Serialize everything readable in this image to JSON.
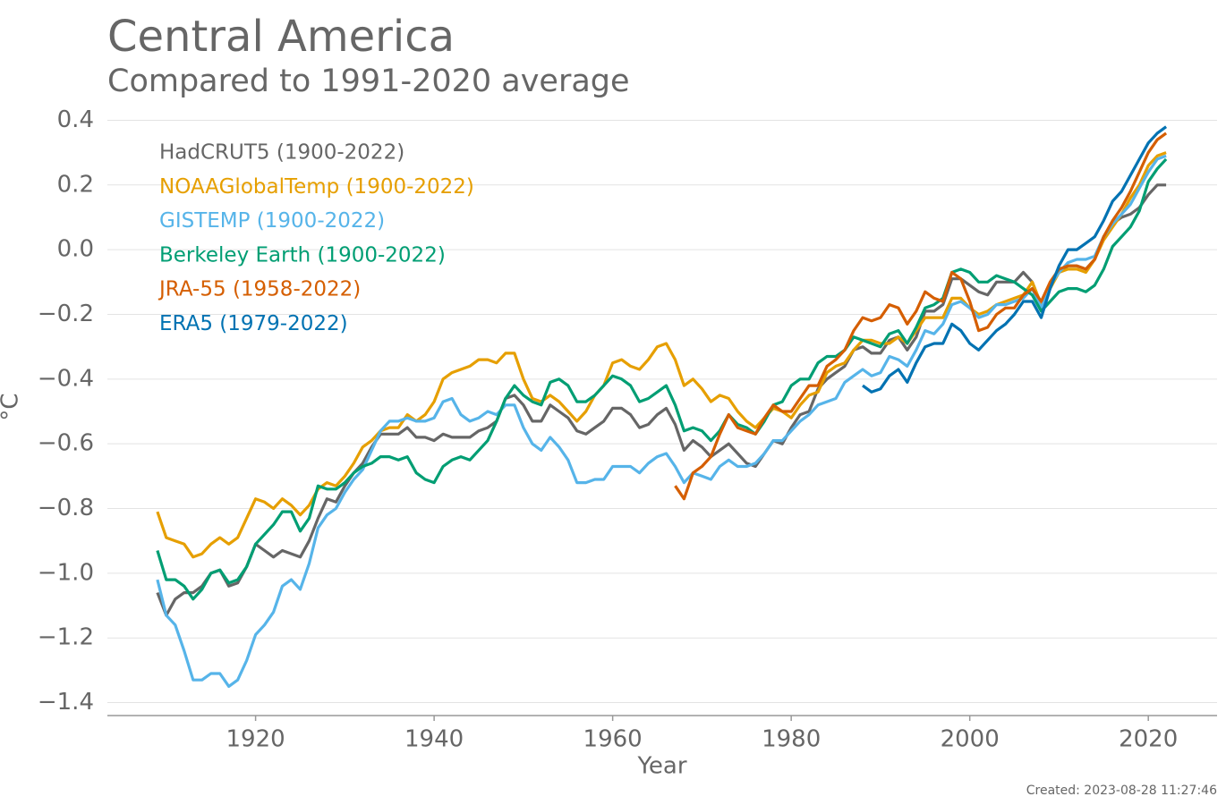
{
  "chart_data": {
    "type": "line",
    "title": "Central America",
    "subtitle": "Compared to 1991-2020 average",
    "x_label": "Year",
    "y_label": "°C",
    "annotation": "Created: 2023-08-28 11:27:46",
    "grid": true,
    "legend": "upper left",
    "xlim": [
      1903.4,
      2027.7
    ],
    "xticks": [
      1920,
      1940,
      1960,
      1980,
      2000,
      2020
    ],
    "ylim": [
      -1.44,
      0.44
    ],
    "yticks": [
      {
        "value": -1.4,
        "label": "−1.4"
      },
      {
        "value": -1.2,
        "label": "−1.2"
      },
      {
        "value": -1.0,
        "label": "−1.0"
      },
      {
        "value": -0.8,
        "label": "−0.8"
      },
      {
        "value": -0.6,
        "label": "−0.6"
      },
      {
        "value": -0.4,
        "label": "−0.4"
      },
      {
        "value": -0.2,
        "label": "−0.2"
      },
      {
        "value": 0,
        "label": "0.0"
      },
      0.2,
      0.4
    ],
    "x": [
      1909,
      1910,
      1911,
      1912,
      1913,
      1914,
      1915,
      1916,
      1917,
      1918,
      1919,
      1920,
      1921,
      1922,
      1923,
      1924,
      1925,
      1926,
      1927,
      1928,
      1929,
      1930,
      1931,
      1932,
      1933,
      1934,
      1935,
      1936,
      1937,
      1938,
      1939,
      1940,
      1941,
      1942,
      1943,
      1944,
      1945,
      1946,
      1947,
      1948,
      1949,
      1950,
      1951,
      1952,
      1953,
      1954,
      1955,
      1956,
      1957,
      1958,
      1959,
      1960,
      1961,
      1962,
      1963,
      1964,
      1965,
      1966,
      1967,
      1968,
      1969,
      1970,
      1971,
      1972,
      1973,
      1974,
      1975,
      1976,
      1977,
      1978,
      1979,
      1980,
      1981,
      1982,
      1983,
      1984,
      1985,
      1986,
      1987,
      1988,
      1989,
      1990,
      1991,
      1992,
      1993,
      1994,
      1995,
      1996,
      1997,
      1998,
      1999,
      2000,
      2001,
      2002,
      2003,
      2004,
      2005,
      2006,
      2007,
      2008,
      2009,
      2010,
      2011,
      2012,
      2013,
      2014,
      2015,
      2016,
      2017,
      2018,
      2019,
      2020,
      2021,
      2022
    ],
    "series": [
      {
        "name": "HadCRUT5 (1900-2022)",
        "color": "#666666",
        "values": [
          -1.06,
          -1.13,
          -1.08,
          -1.06,
          -1.06,
          -1.04,
          -1.0,
          -0.99,
          -1.04,
          -1.03,
          -0.98,
          -0.91,
          -0.93,
          -0.95,
          -0.93,
          -0.94,
          -0.95,
          -0.9,
          -0.83,
          -0.77,
          -0.78,
          -0.73,
          -0.69,
          -0.66,
          -0.61,
          -0.57,
          -0.57,
          -0.57,
          -0.55,
          -0.58,
          -0.58,
          -0.59,
          -0.57,
          -0.58,
          -0.58,
          -0.58,
          -0.56,
          -0.55,
          -0.53,
          -0.46,
          -0.45,
          -0.48,
          -0.53,
          -0.53,
          -0.48,
          -0.5,
          -0.52,
          -0.56,
          -0.57,
          -0.55,
          -0.53,
          -0.49,
          -0.49,
          -0.51,
          -0.55,
          -0.54,
          -0.51,
          -0.49,
          -0.54,
          -0.62,
          -0.59,
          -0.61,
          -0.64,
          -0.62,
          -0.6,
          -0.63,
          -0.66,
          -0.67,
          -0.63,
          -0.59,
          -0.6,
          -0.55,
          -0.51,
          -0.5,
          -0.43,
          -0.4,
          -0.38,
          -0.36,
          -0.31,
          -0.3,
          -0.32,
          -0.32,
          -0.28,
          -0.27,
          -0.31,
          -0.27,
          -0.19,
          -0.19,
          -0.17,
          -0.09,
          -0.09,
          -0.11,
          -0.13,
          -0.14,
          -0.1,
          -0.1,
          -0.1,
          -0.07,
          -0.1,
          -0.17,
          -0.11,
          -0.07,
          -0.05,
          -0.05,
          -0.06,
          -0.03,
          0.04,
          0.08,
          0.1,
          0.11,
          0.13,
          0.17,
          0.2,
          0.2
        ]
      },
      {
        "name": "NOAAGlobalTemp (1900-2022)",
        "color": "#E69F00",
        "values": [
          -0.81,
          -0.89,
          -0.9,
          -0.91,
          -0.95,
          -0.94,
          -0.91,
          -0.89,
          -0.91,
          -0.89,
          -0.83,
          -0.77,
          -0.78,
          -0.8,
          -0.77,
          -0.79,
          -0.82,
          -0.79,
          -0.74,
          -0.72,
          -0.73,
          -0.7,
          -0.66,
          -0.61,
          -0.59,
          -0.56,
          -0.55,
          -0.55,
          -0.51,
          -0.53,
          -0.51,
          -0.47,
          -0.4,
          -0.38,
          -0.37,
          -0.36,
          -0.34,
          -0.34,
          -0.35,
          -0.32,
          -0.32,
          -0.4,
          -0.46,
          -0.47,
          -0.45,
          -0.47,
          -0.5,
          -0.53,
          -0.5,
          -0.45,
          -0.42,
          -0.35,
          -0.34,
          -0.36,
          -0.37,
          -0.34,
          -0.3,
          -0.29,
          -0.34,
          -0.42,
          -0.4,
          -0.43,
          -0.47,
          -0.45,
          -0.46,
          -0.5,
          -0.53,
          -0.55,
          -0.52,
          -0.49,
          -0.5,
          -0.52,
          -0.48,
          -0.45,
          -0.44,
          -0.38,
          -0.36,
          -0.35,
          -0.31,
          -0.28,
          -0.28,
          -0.29,
          -0.29,
          -0.27,
          -0.29,
          -0.25,
          -0.21,
          -0.21,
          -0.21,
          -0.15,
          -0.15,
          -0.18,
          -0.2,
          -0.19,
          -0.17,
          -0.16,
          -0.15,
          -0.14,
          -0.1,
          -0.17,
          -0.12,
          -0.07,
          -0.06,
          -0.06,
          -0.07,
          -0.03,
          0.03,
          0.07,
          0.11,
          0.16,
          0.2,
          0.26,
          0.29,
          0.3
        ]
      },
      {
        "name": "GISTEMP (1900-2022)",
        "color": "#56B4E9",
        "values": [
          -1.02,
          -1.13,
          -1.16,
          -1.24,
          -1.33,
          -1.33,
          -1.31,
          -1.31,
          -1.35,
          -1.33,
          -1.27,
          -1.19,
          -1.16,
          -1.12,
          -1.04,
          -1.02,
          -1.05,
          -0.97,
          -0.86,
          -0.82,
          -0.8,
          -0.75,
          -0.71,
          -0.68,
          -0.62,
          -0.56,
          -0.53,
          -0.53,
          -0.52,
          -0.53,
          -0.53,
          -0.52,
          -0.47,
          -0.46,
          -0.51,
          -0.53,
          -0.52,
          -0.5,
          -0.51,
          -0.48,
          -0.48,
          -0.55,
          -0.6,
          -0.62,
          -0.58,
          -0.61,
          -0.65,
          -0.72,
          -0.72,
          -0.71,
          -0.71,
          -0.67,
          -0.67,
          -0.67,
          -0.69,
          -0.66,
          -0.64,
          -0.63,
          -0.67,
          -0.72,
          -0.69,
          -0.7,
          -0.71,
          -0.67,
          -0.65,
          -0.67,
          -0.67,
          -0.66,
          -0.63,
          -0.59,
          -0.59,
          -0.56,
          -0.53,
          -0.51,
          -0.48,
          -0.47,
          -0.46,
          -0.41,
          -0.39,
          -0.37,
          -0.39,
          -0.38,
          -0.33,
          -0.34,
          -0.36,
          -0.31,
          -0.25,
          -0.26,
          -0.23,
          -0.17,
          -0.16,
          -0.18,
          -0.21,
          -0.2,
          -0.17,
          -0.17,
          -0.16,
          -0.15,
          -0.12,
          -0.18,
          -0.11,
          -0.07,
          -0.04,
          -0.03,
          -0.03,
          -0.02,
          0.04,
          0.08,
          0.11,
          0.14,
          0.19,
          0.24,
          0.28,
          0.29
        ]
      },
      {
        "name": "Berkeley Earth (1900-2022)",
        "color": "#009E73",
        "values": [
          -0.93,
          -1.02,
          -1.02,
          -1.04,
          -1.08,
          -1.05,
          -1.0,
          -0.99,
          -1.03,
          -1.02,
          -0.98,
          -0.91,
          -0.88,
          -0.85,
          -0.81,
          -0.81,
          -0.87,
          -0.83,
          -0.73,
          -0.74,
          -0.74,
          -0.72,
          -0.69,
          -0.67,
          -0.66,
          -0.64,
          -0.64,
          -0.65,
          -0.64,
          -0.69,
          -0.71,
          -0.72,
          -0.67,
          -0.65,
          -0.64,
          -0.65,
          -0.62,
          -0.59,
          -0.53,
          -0.46,
          -0.42,
          -0.45,
          -0.47,
          -0.48,
          -0.41,
          -0.4,
          -0.42,
          -0.47,
          -0.47,
          -0.45,
          -0.42,
          -0.39,
          -0.4,
          -0.42,
          -0.47,
          -0.46,
          -0.44,
          -0.42,
          -0.48,
          -0.56,
          -0.55,
          -0.56,
          -0.59,
          -0.56,
          -0.51,
          -0.54,
          -0.55,
          -0.57,
          -0.53,
          -0.48,
          -0.47,
          -0.42,
          -0.4,
          -0.4,
          -0.35,
          -0.33,
          -0.33,
          -0.31,
          -0.27,
          -0.28,
          -0.29,
          -0.3,
          -0.26,
          -0.25,
          -0.29,
          -0.24,
          -0.18,
          -0.17,
          -0.15,
          -0.07,
          -0.06,
          -0.07,
          -0.1,
          -0.1,
          -0.08,
          -0.09,
          -0.1,
          -0.12,
          -0.14,
          -0.19,
          -0.16,
          -0.13,
          -0.12,
          -0.12,
          -0.13,
          -0.11,
          -0.06,
          0.01,
          0.04,
          0.07,
          0.12,
          0.21,
          0.25,
          0.28
        ]
      },
      {
        "name": "JRA-55 (1958-2022)",
        "color": "#D55E00",
        "values": [
          null,
          null,
          null,
          null,
          null,
          null,
          null,
          null,
          null,
          null,
          null,
          null,
          null,
          null,
          null,
          null,
          null,
          null,
          null,
          null,
          null,
          null,
          null,
          null,
          null,
          null,
          null,
          null,
          null,
          null,
          null,
          null,
          null,
          null,
          null,
          null,
          null,
          null,
          null,
          null,
          null,
          null,
          null,
          null,
          null,
          null,
          null,
          null,
          null,
          null,
          null,
          null,
          null,
          null,
          null,
          null,
          null,
          null,
          -0.73,
          -0.77,
          -0.69,
          -0.67,
          -0.64,
          -0.57,
          -0.51,
          -0.55,
          -0.56,
          -0.57,
          -0.52,
          -0.48,
          -0.5,
          -0.5,
          -0.46,
          -0.42,
          -0.42,
          -0.36,
          -0.34,
          -0.31,
          -0.25,
          -0.21,
          -0.22,
          -0.21,
          -0.17,
          -0.18,
          -0.23,
          -0.19,
          -0.13,
          -0.15,
          -0.16,
          -0.07,
          -0.09,
          -0.16,
          -0.25,
          -0.24,
          -0.2,
          -0.18,
          -0.18,
          -0.14,
          -0.12,
          -0.16,
          -0.1,
          -0.06,
          -0.05,
          -0.05,
          -0.06,
          -0.03,
          0.04,
          0.09,
          0.13,
          0.18,
          0.24,
          0.3,
          0.34,
          0.36
        ]
      },
      {
        "name": "ERA5 (1979-2022)",
        "color": "#0072B2",
        "values": [
          null,
          null,
          null,
          null,
          null,
          null,
          null,
          null,
          null,
          null,
          null,
          null,
          null,
          null,
          null,
          null,
          null,
          null,
          null,
          null,
          null,
          null,
          null,
          null,
          null,
          null,
          null,
          null,
          null,
          null,
          null,
          null,
          null,
          null,
          null,
          null,
          null,
          null,
          null,
          null,
          null,
          null,
          null,
          null,
          null,
          null,
          null,
          null,
          null,
          null,
          null,
          null,
          null,
          null,
          null,
          null,
          null,
          null,
          null,
          null,
          null,
          null,
          null,
          null,
          null,
          null,
          null,
          null,
          null,
          null,
          null,
          null,
          null,
          null,
          null,
          null,
          null,
          null,
          null,
          -0.42,
          -0.44,
          -0.43,
          -0.39,
          -0.37,
          -0.41,
          -0.35,
          -0.3,
          -0.29,
          -0.29,
          -0.23,
          -0.25,
          -0.29,
          -0.31,
          -0.28,
          -0.25,
          -0.23,
          -0.2,
          -0.16,
          -0.16,
          -0.21,
          -0.12,
          -0.05,
          0.0,
          0.0,
          0.02,
          0.04,
          0.09,
          0.15,
          0.18,
          0.23,
          0.28,
          0.33,
          0.36,
          0.38
        ]
      }
    ]
  }
}
